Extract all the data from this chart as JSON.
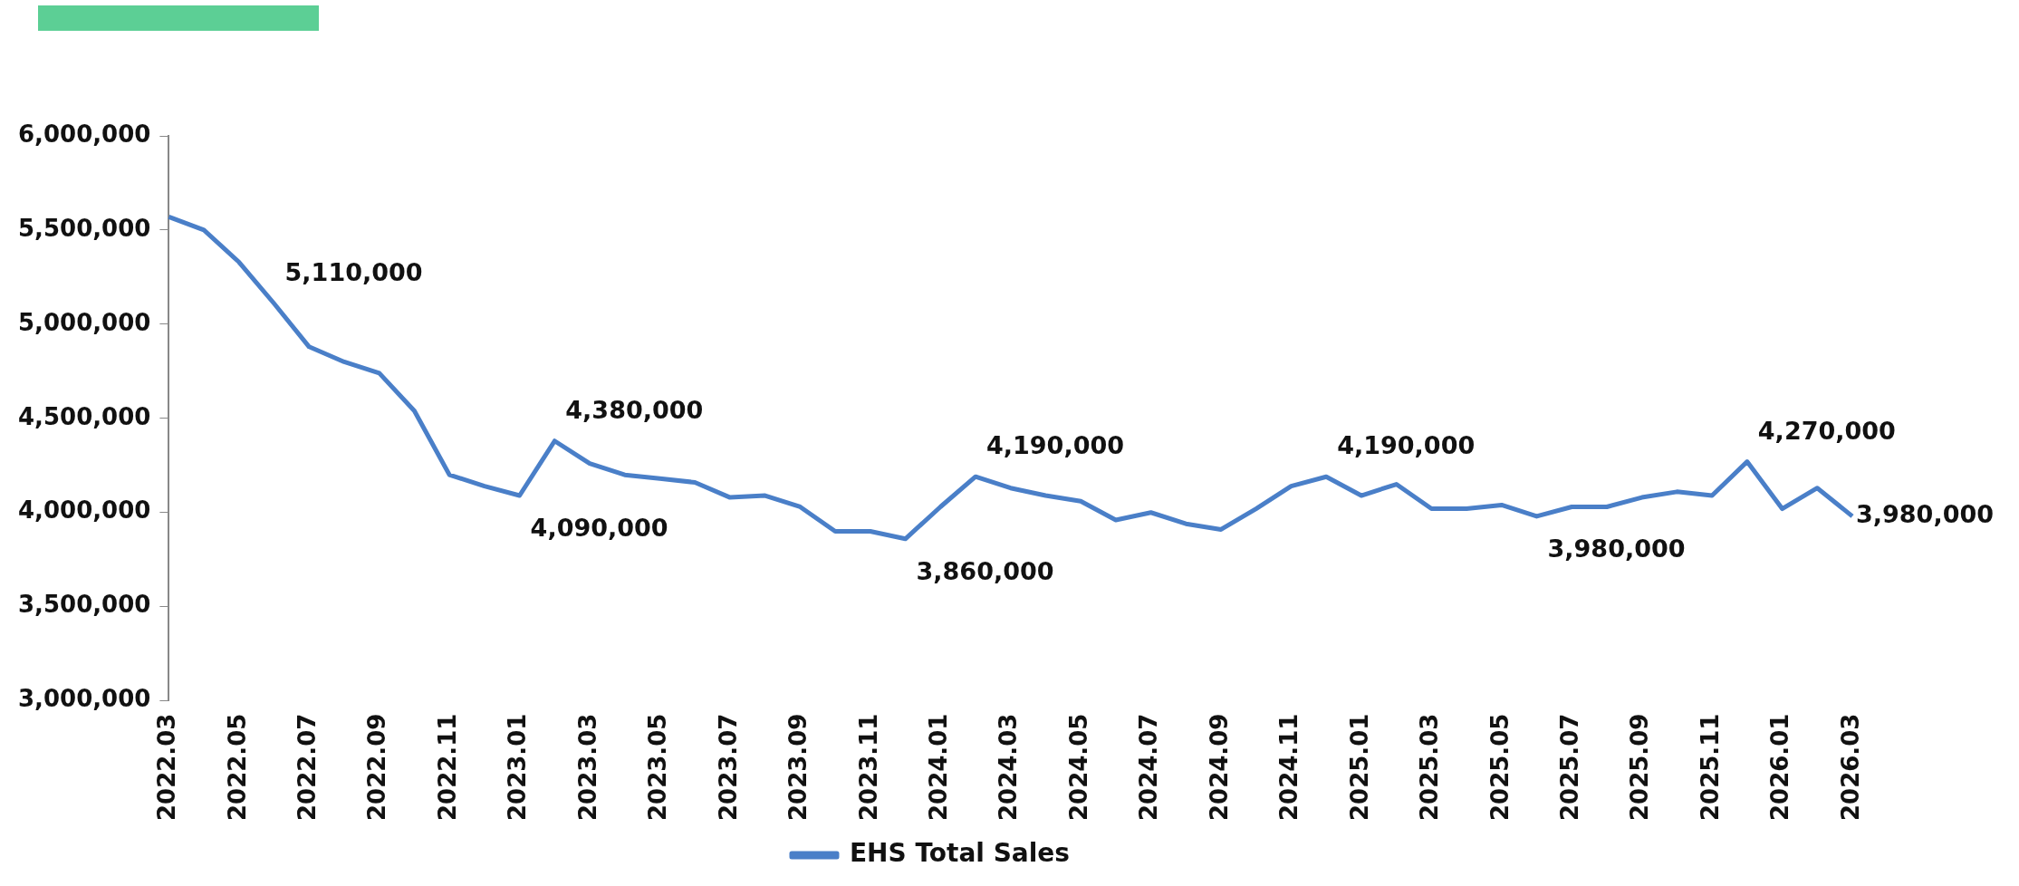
{
  "chart_data": {
    "type": "line",
    "categories": [
      "2022.03",
      null,
      "2022.05",
      null,
      "2022.07",
      null,
      "2022.09",
      null,
      "2022.11",
      null,
      "2023.01",
      null,
      "2023.03",
      null,
      "2023.05",
      null,
      "2023.07",
      null,
      "2023.09",
      null,
      "2023.11",
      null,
      "2024.01",
      null,
      "2024.03",
      null,
      "2024.05",
      null,
      "2024.07",
      null,
      "2024.09",
      null,
      "2024.11",
      null,
      "2025.01",
      null,
      "2025.03",
      null,
      "2025.05",
      null,
      "2025.07",
      null,
      "2025.09",
      null,
      "2025.11",
      null,
      "2026.01",
      null,
      "2026.03"
    ],
    "series": [
      {
        "name": "EHS Total Sales",
        "color": "#4a7fc8",
        "values": [
          5570000,
          5500000,
          5330000,
          5110000,
          4880000,
          4800000,
          4740000,
          4540000,
          4200000,
          4140000,
          4090000,
          4380000,
          4260000,
          4200000,
          4180000,
          4160000,
          4080000,
          4090000,
          4030000,
          3900000,
          3900000,
          3860000,
          4030000,
          4190000,
          4130000,
          4090000,
          4060000,
          3960000,
          4000000,
          3940000,
          3910000,
          4020000,
          4140000,
          4190000,
          4090000,
          4150000,
          4020000,
          4020000,
          4040000,
          3980000,
          4030000,
          4030000,
          4080000,
          4110000,
          4090000,
          4270000,
          4020000,
          4130000,
          3980000
        ],
        "value_labels": [
          null,
          null,
          null,
          "5,110,000",
          null,
          null,
          null,
          null,
          null,
          null,
          "4,090,000",
          "4,380,000",
          null,
          null,
          null,
          null,
          null,
          null,
          null,
          null,
          null,
          "3,860,000",
          null,
          "4,190,000",
          null,
          null,
          null,
          null,
          null,
          null,
          null,
          null,
          null,
          "4,190,000",
          null,
          null,
          null,
          null,
          null,
          "3,980,000",
          null,
          null,
          null,
          null,
          null,
          "4,270,000",
          null,
          null,
          "3,980,000"
        ]
      }
    ],
    "ylim": [
      3000000,
      6000000
    ],
    "yticks": [
      {
        "value": 3000000,
        "label": "3,000,000"
      },
      {
        "value": 3500000,
        "label": "3,500,000"
      },
      {
        "value": 4000000,
        "label": "4,000,000"
      },
      {
        "value": 4500000,
        "label": "4,500,000"
      },
      {
        "value": 5000000,
        "label": "5,000,000"
      },
      {
        "value": 5500000,
        "label": "5,500,000"
      },
      {
        "value": 6000000,
        "label": "6,000,000"
      }
    ],
    "grid": false,
    "legend": "bottom",
    "marker": "none",
    "line_style": "solid"
  }
}
